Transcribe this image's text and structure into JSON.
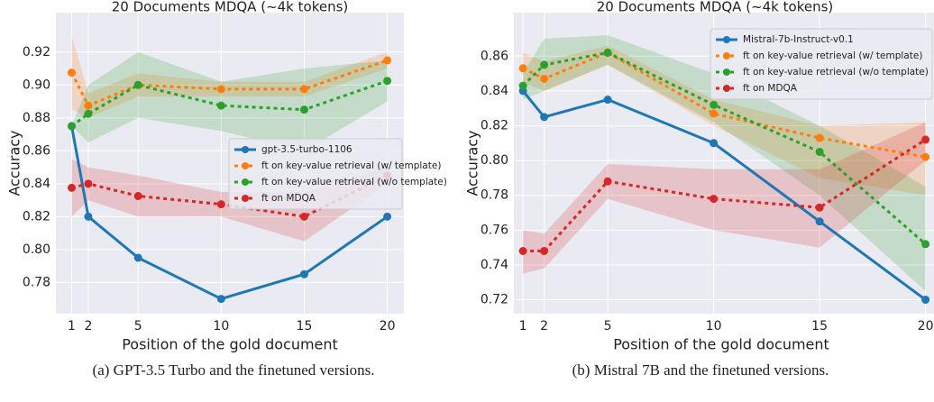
{
  "chart_data": [
    {
      "type": "line",
      "title": "20 Documents MDQA (~4k tokens)",
      "xlabel": "Position of the gold document",
      "ylabel": "Accuracy",
      "caption": "(a) GPT-3.5 Turbo and the finetuned versions.",
      "x": [
        1,
        2,
        5,
        10,
        15,
        20
      ],
      "xlim": [
        0.05,
        21
      ],
      "xticks": [
        1,
        2,
        5,
        10,
        15,
        20
      ],
      "ylim": [
        0.761,
        0.944
      ],
      "yticks": [
        {
          "value": 0.78,
          "label": "0.78"
        },
        {
          "value": 0.8,
          "label": "0.80"
        },
        {
          "value": 0.82,
          "label": "0.82"
        },
        {
          "value": 0.84,
          "label": "0.84"
        },
        {
          "value": 0.86,
          "label": "0.86"
        },
        {
          "value": 0.88,
          "label": "0.88"
        },
        {
          "value": 0.9,
          "label": "0.90"
        },
        {
          "value": 0.92,
          "label": "0.92"
        }
      ],
      "grid": true,
      "legend": "center right",
      "series": [
        {
          "name": "gpt-3.5-turbo-1106",
          "color": "#1f77b4",
          "style": "solid",
          "values": [
            0.875,
            0.82,
            0.795,
            0.77,
            0.785,
            0.82
          ]
        },
        {
          "name": "ft on key-value retrieval (w/ template)",
          "color": "#ff7f0e",
          "style": "dotted",
          "values": [
            0.9075,
            0.8875,
            0.9,
            0.8975,
            0.8975,
            0.915
          ],
          "lower": [
            0.885,
            0.88,
            0.893,
            0.893,
            0.893,
            0.91
          ],
          "upper": [
            0.93,
            0.895,
            0.907,
            0.902,
            0.902,
            0.92
          ]
        },
        {
          "name": "ft on key-value retrieval (w/o template)",
          "color": "#2ca02c",
          "style": "dotted",
          "values": [
            0.875,
            0.8825,
            0.9,
            0.8875,
            0.885,
            0.9025
          ],
          "lower": [
            0.875,
            0.865,
            0.88,
            0.872,
            0.86,
            0.89
          ],
          "upper": [
            0.875,
            0.9,
            0.92,
            0.902,
            0.91,
            0.915
          ]
        },
        {
          "name": "ft on MDQA",
          "color": "#d62728",
          "style": "dotted",
          "values": [
            0.8375,
            0.84,
            0.8325,
            0.8275,
            0.82,
            0.845
          ],
          "lower": [
            0.82,
            0.83,
            0.82,
            0.82,
            0.805,
            0.84
          ],
          "upper": [
            0.855,
            0.85,
            0.845,
            0.835,
            0.835,
            0.85
          ]
        }
      ]
    },
    {
      "type": "line",
      "title": "20 Documents MDQA (~4k tokens)",
      "xlabel": "Position of the gold document",
      "ylabel": "Accuracy",
      "caption": "(b) Mistral 7B and the finetuned versions.",
      "x": [
        1,
        2,
        5,
        10,
        15,
        20
      ],
      "xlim": [
        0.57,
        20.4
      ],
      "xticks": [
        1,
        2,
        5,
        10,
        15,
        20
      ],
      "ylim": [
        0.712,
        0.885
      ],
      "yticks": [
        {
          "value": 0.72,
          "label": "0.72"
        },
        {
          "value": 0.74,
          "label": "0.74"
        },
        {
          "value": 0.76,
          "label": "0.76"
        },
        {
          "value": 0.78,
          "label": "0.78"
        },
        {
          "value": 0.8,
          "label": "0.80"
        },
        {
          "value": 0.82,
          "label": "0.82"
        },
        {
          "value": 0.84,
          "label": "0.84"
        },
        {
          "value": 0.86,
          "label": "0.86"
        }
      ],
      "grid": true,
      "legend": "upper right",
      "series": [
        {
          "name": "Mistral-7b-Instruct-v0.1",
          "color": "#1f77b4",
          "style": "solid",
          "values": [
            0.84,
            0.825,
            0.835,
            0.81,
            0.765,
            0.72
          ]
        },
        {
          "name": "ft on key-value retrieval (w/ template)",
          "color": "#ff7f0e",
          "style": "dotted",
          "values": [
            0.853,
            0.847,
            0.862,
            0.827,
            0.813,
            0.802
          ],
          "lower": [
            0.845,
            0.84,
            0.855,
            0.82,
            0.79,
            0.78
          ],
          "upper": [
            0.862,
            0.857,
            0.866,
            0.835,
            0.82,
            0.822
          ]
        },
        {
          "name": "ft on key-value retrieval (w/o template)",
          "color": "#2ca02c",
          "style": "dotted",
          "values": [
            0.843,
            0.855,
            0.862,
            0.832,
            0.805,
            0.752
          ],
          "lower": [
            0.835,
            0.84,
            0.855,
            0.822,
            0.78,
            0.725
          ],
          "upper": [
            0.85,
            0.87,
            0.872,
            0.85,
            0.82,
            0.785
          ]
        },
        {
          "name": "ft on MDQA",
          "color": "#d62728",
          "style": "dotted",
          "values": [
            0.748,
            0.748,
            0.788,
            0.778,
            0.773,
            0.812
          ],
          "lower": [
            0.735,
            0.738,
            0.778,
            0.76,
            0.75,
            0.8
          ],
          "upper": [
            0.76,
            0.758,
            0.798,
            0.795,
            0.795,
            0.822
          ]
        }
      ]
    }
  ]
}
